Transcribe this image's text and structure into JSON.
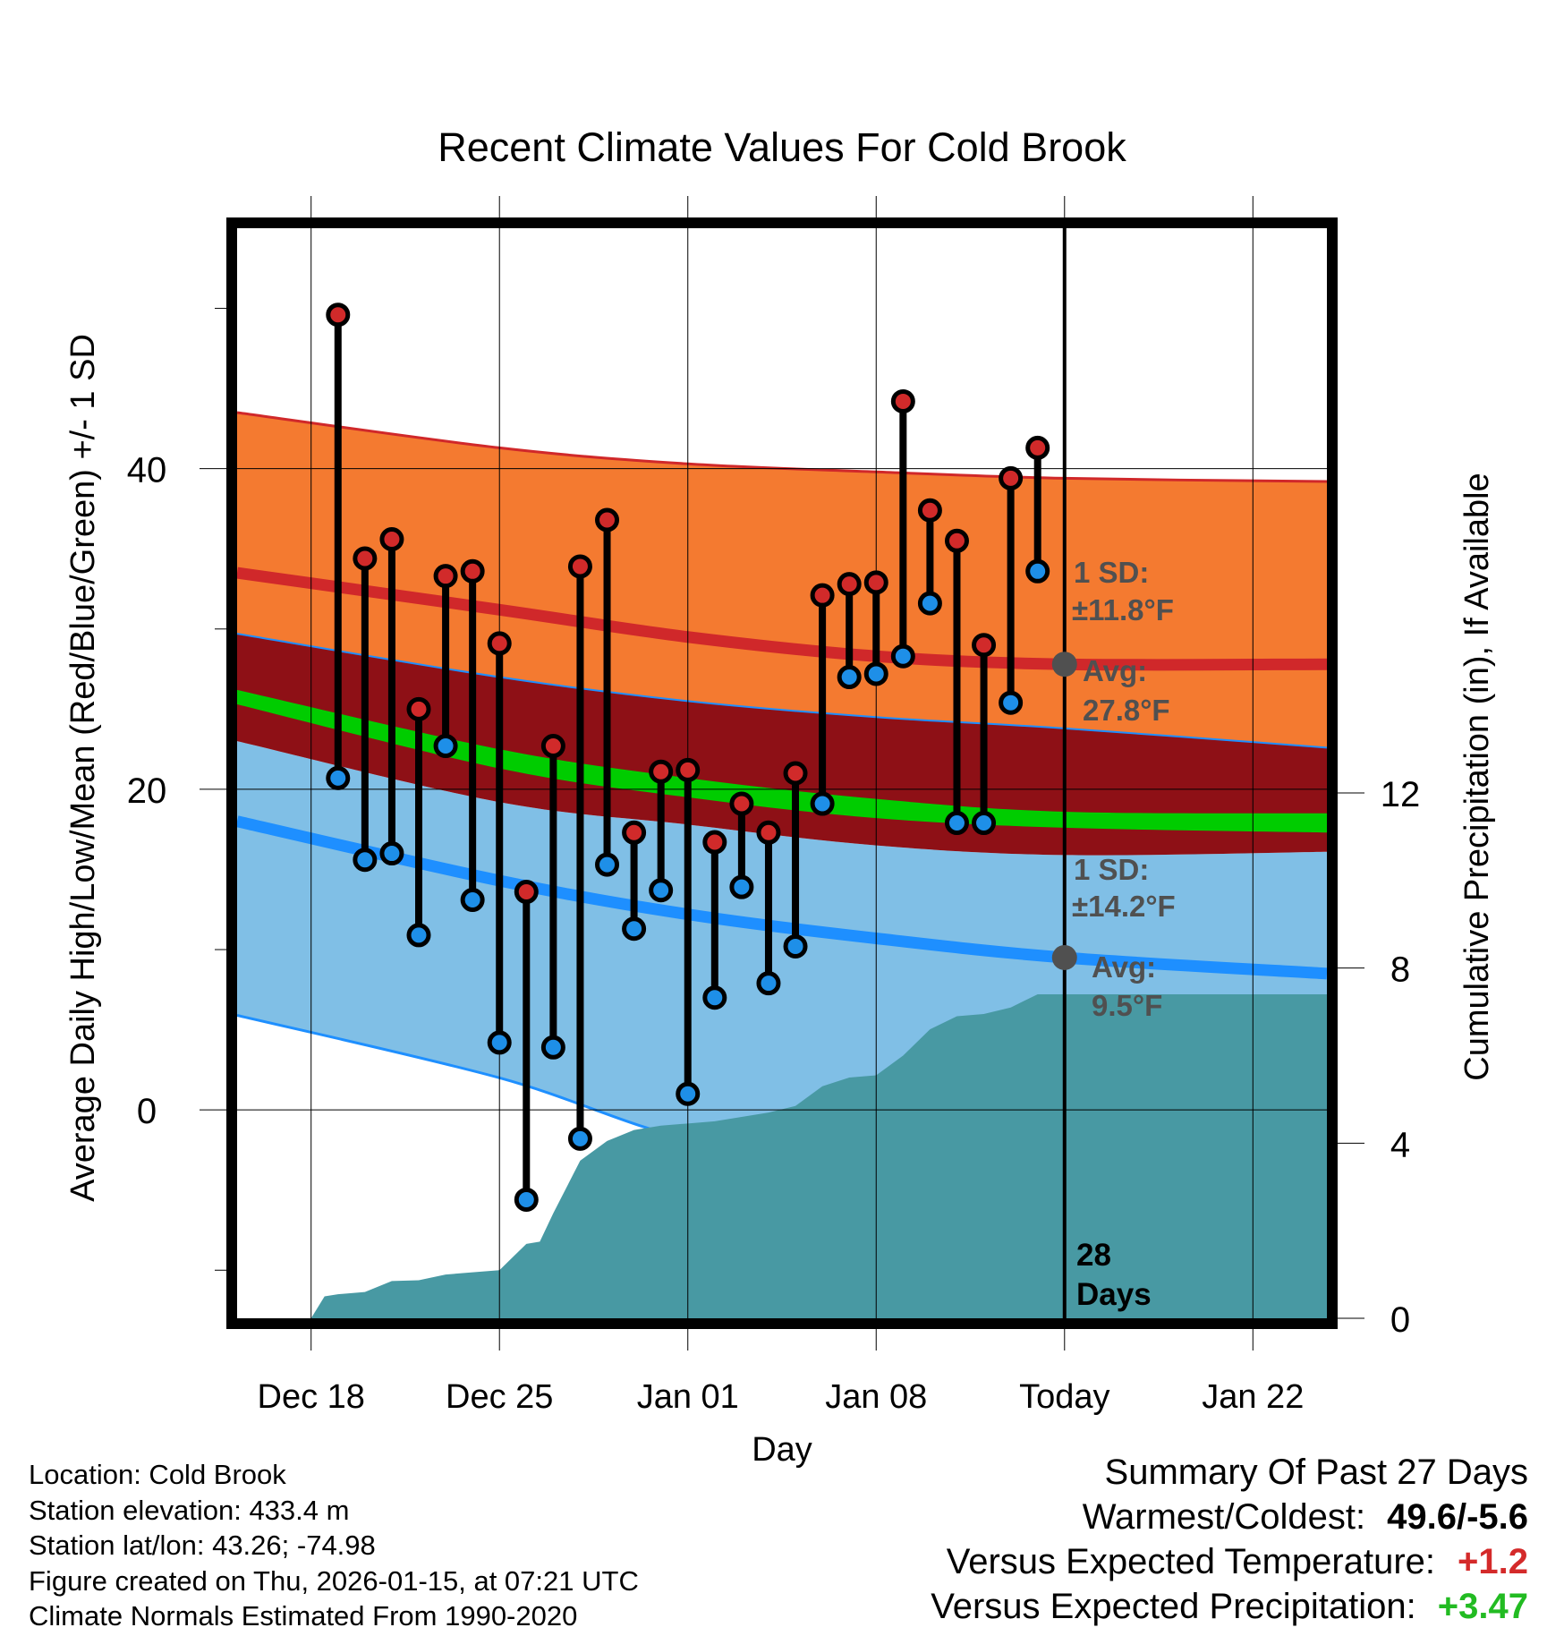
{
  "title": "Recent Climate Values For Cold Brook",
  "chart_data": {
    "type": "range",
    "title": "Recent Climate Values For Cold Brook",
    "xlabel": "Day",
    "ylabel_left": "Average Daily High/Low/Mean (Red/Blue/Green) +/- 1 SD",
    "ylabel_right": "Cumulative Precipitation (in), If Available",
    "x_tick_labels": [
      "Dec 18",
      "Dec 25",
      "Jan 01",
      "Jan 08",
      "Today",
      "Jan 22"
    ],
    "x_tick_days": [
      0,
      7,
      14,
      21,
      28,
      35
    ],
    "xlim": [
      -2.75,
      37.75
    ],
    "ylim_left": [
      -13,
      55
    ],
    "yticks_left": [
      0,
      20,
      40
    ],
    "ylim_right": [
      0,
      24.9
    ],
    "yticks_right": [
      0,
      4,
      8,
      12
    ],
    "normals": {
      "day": [
        -2.75,
        7,
        14,
        21,
        28,
        37.75
      ],
      "high_mean": [
        33.5,
        31.2,
        29.5,
        28.3,
        27.8,
        27.8
      ],
      "high_sd_upper": [
        43.5,
        41.3,
        40.3,
        39.8,
        39.4,
        39.2
      ],
      "high_sd_lower": [
        29.7,
        27.0,
        25.5,
        24.5,
        23.8,
        22.6
      ],
      "mean_low": [
        25.3,
        21.3,
        19.5,
        18.2,
        17.6,
        17.3
      ],
      "mean_high": [
        26.2,
        22.5,
        20.7,
        19.4,
        18.6,
        18.5
      ],
      "low_mean": [
        18.0,
        14.3,
        12.2,
        10.7,
        9.5,
        8.5
      ],
      "low_sd_upper": [
        23.0,
        19.2,
        17.8,
        16.5,
        15.9,
        16.1
      ],
      "low_sd_lower": [
        5.9,
        2.0,
        -1.8,
        -3.0,
        -4.0,
        -4.5
      ]
    },
    "observations": [
      {
        "day": 1,
        "high": 49.6,
        "low": 20.7
      },
      {
        "day": 2,
        "high": 34.4,
        "low": 15.6
      },
      {
        "day": 3,
        "high": 35.6,
        "low": 16.0
      },
      {
        "day": 4,
        "high": 25.0,
        "low": 10.9
      },
      {
        "day": 5,
        "high": 33.3,
        "low": 22.7
      },
      {
        "day": 6,
        "high": 33.6,
        "low": 13.1
      },
      {
        "day": 7,
        "high": 29.1,
        "low": 4.2
      },
      {
        "day": 8,
        "high": 13.6,
        "low": -5.6
      },
      {
        "day": 9,
        "high": 22.7,
        "low": 3.9
      },
      {
        "day": 10,
        "high": 33.9,
        "low": -1.8
      },
      {
        "day": 11,
        "high": 36.8,
        "low": 15.3
      },
      {
        "day": 12,
        "high": 17.3,
        "low": 11.3
      },
      {
        "day": 13,
        "high": 21.1,
        "low": 13.7
      },
      {
        "day": 14,
        "high": 21.2,
        "low": 1.0
      },
      {
        "day": 15,
        "high": 16.7,
        "low": 7.0
      },
      {
        "day": 16,
        "high": 19.1,
        "low": 13.9
      },
      {
        "day": 17,
        "high": 17.3,
        "low": 7.9
      },
      {
        "day": 18,
        "high": 21.0,
        "low": 10.2
      },
      {
        "day": 19,
        "high": 32.1,
        "low": 19.1
      },
      {
        "day": 20,
        "high": 32.8,
        "low": 27.0
      },
      {
        "day": 21,
        "high": 32.9,
        "low": 27.2
      },
      {
        "day": 22,
        "high": 44.2,
        "low": 28.3
      },
      {
        "day": 23,
        "high": 37.4,
        "low": 31.6
      },
      {
        "day": 24,
        "high": 35.5,
        "low": 17.9
      },
      {
        "day": 25,
        "high": 29.0,
        "low": 17.9
      },
      {
        "day": 26,
        "high": 39.4,
        "low": 25.4
      },
      {
        "day": 27,
        "high": 41.3,
        "low": 33.6
      }
    ],
    "precipitation": {
      "day": [
        0,
        0.5,
        1,
        2,
        3,
        4,
        5,
        6,
        7,
        7.5,
        8,
        8.5,
        9,
        10,
        11,
        12,
        13,
        14,
        15,
        16,
        17,
        18,
        19,
        20,
        21,
        22,
        23,
        24,
        25,
        26,
        27,
        28,
        37.75
      ],
      "cumulative_in": [
        0,
        0.5,
        0.55,
        0.6,
        0.85,
        0.87,
        1.0,
        1.05,
        1.1,
        1.4,
        1.7,
        1.75,
        2.4,
        3.6,
        4.05,
        4.3,
        4.4,
        4.45,
        4.5,
        4.6,
        4.7,
        4.85,
        5.3,
        5.5,
        5.55,
        6.0,
        6.6,
        6.9,
        6.95,
        7.1,
        7.4,
        7.4,
        7.4
      ]
    },
    "annotations": {
      "high_sd_label": "1 SD:",
      "high_sd_value": "±11.8°F",
      "high_avg_label": "Avg:",
      "high_avg_value": "27.8°F",
      "low_sd_label": "1 SD:",
      "low_sd_value": "±14.2°F",
      "low_avg_label": "Avg:",
      "low_avg_value": "9.5°F",
      "days_count": "28",
      "days_label": "Days"
    }
  },
  "info": {
    "location": "Location: Cold Brook",
    "elevation": "Station elevation: 433.4 m",
    "latlon": "Station lat/lon: 43.26; -74.98",
    "created": "Figure created on Thu, 2026-01-15, at 07:21 UTC",
    "normals": "Climate Normals Estimated From 1990-2020"
  },
  "summary": {
    "title": "Summary Of Past 27 Days",
    "warmest_coldest_label": "Warmest/Coldest:",
    "warmest_coldest_value": "49.6/-5.6",
    "temp_label": "Versus Expected Temperature:",
    "temp_value": "+1.2",
    "precip_label": "Versus Expected Precipitation:",
    "precip_value": "+3.47"
  },
  "colors": {
    "high_band": "#f47a30",
    "high_line": "#d0282a",
    "dark_band": "#8e1016",
    "mean_line": "#00cc00",
    "low_band": "#80bfe6",
    "low_line": "#1e8fff",
    "precip_fill": "#4899a3",
    "high_dot": "#d12a2a",
    "low_dot": "#1e8fe8",
    "avg_dot": "#505050",
    "annotation": "#505050",
    "temp_positive": "#d42a2a",
    "precip_positive": "#22bb22"
  }
}
